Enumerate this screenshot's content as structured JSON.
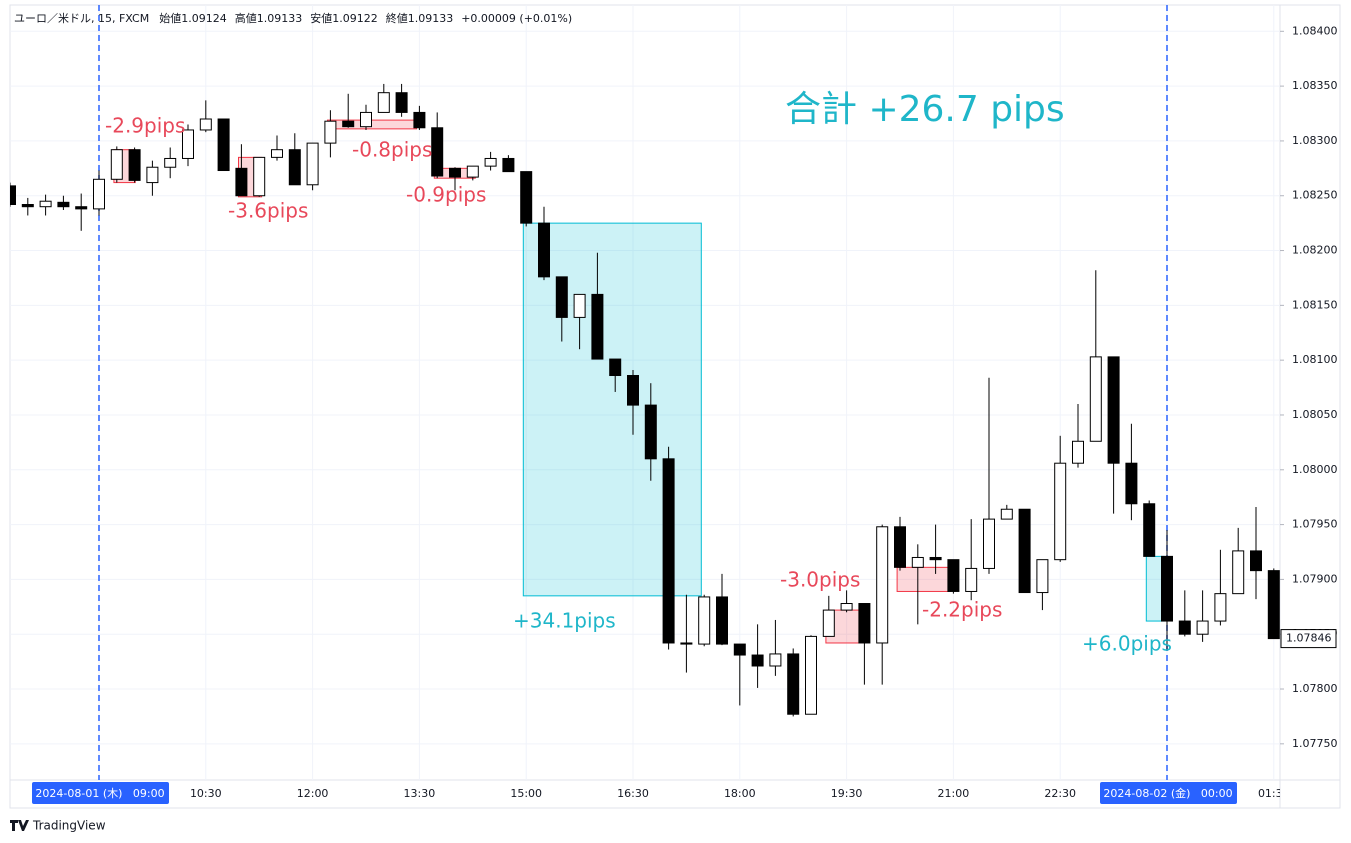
{
  "chart_data": {
    "type": "candlestick",
    "header": {
      "symbol": "ユーロ／米ドル, 15, FXCM",
      "ohlc": [
        "始値1.09124",
        "高値1.09133",
        "安値1.09122",
        "終値1.09133"
      ],
      "change": "+0.00009 (+0.01%)"
    },
    "annotation": "合計 +26.7 pips",
    "brand": "TradingView",
    "categories": [
      null,
      null,
      null,
      null,
      null,
      "2024-08-01 (木)   09:00",
      null,
      null,
      null,
      null,
      null,
      "10:30",
      null,
      null,
      null,
      null,
      null,
      "12:00",
      null,
      null,
      null,
      null,
      null,
      "13:30",
      null,
      null,
      null,
      null,
      null,
      "15:00",
      null,
      null,
      null,
      null,
      null,
      "16:30",
      null,
      null,
      null,
      null,
      null,
      "18:00",
      null,
      null,
      null,
      null,
      null,
      "19:30",
      null,
      null,
      null,
      null,
      null,
      "21:00",
      null,
      null,
      null,
      null,
      null,
      "22:30",
      null,
      null,
      null,
      null,
      null,
      "2024-08-02 (金)   00:00",
      null,
      null,
      null,
      null,
      null,
      "01:30"
    ],
    "open": [
      1.08259,
      1.08242,
      1.0824,
      1.08244,
      1.0824,
      1.08238,
      1.08265,
      1.08292,
      1.08262,
      1.08276,
      1.08284,
      1.0831,
      1.0832,
      1.08275,
      1.0825,
      1.08285,
      1.08292,
      1.0826,
      1.08298,
      1.08318,
      1.08313,
      1.08326,
      1.08344,
      1.08326,
      1.08312,
      1.08275,
      1.08267,
      1.08277,
      1.08284,
      1.08272,
      1.08225,
      1.08176,
      1.08139,
      1.0816,
      1.08101,
      1.08086,
      1.08059,
      1.0801,
      1.07842,
      1.07841,
      1.07884,
      1.07841,
      1.07831,
      1.07821,
      1.07832,
      1.07777,
      1.07848,
      1.07872,
      1.07878,
      1.07842,
      1.07948,
      1.07911,
      1.0792,
      1.07918,
      1.07889,
      1.0791,
      1.07955,
      1.07964,
      1.07888,
      1.07918,
      1.08006,
      1.08026,
      1.08103,
      1.08006,
      1.07969,
      1.07921,
      1.07862,
      1.0785,
      1.07862,
      1.07887,
      1.07926,
      1.07908
    ],
    "high": [
      1.08262,
      1.08248,
      1.08251,
      1.0825,
      1.08252,
      1.08273,
      1.08295,
      1.08294,
      1.08282,
      1.08294,
      1.08315,
      1.08337,
      1.0832,
      1.08297,
      1.08285,
      1.08305,
      1.08307,
      1.08298,
      1.08328,
      1.08343,
      1.08333,
      1.08352,
      1.08352,
      1.08332,
      1.08326,
      1.08276,
      1.08277,
      1.0829,
      1.08287,
      1.08272,
      1.0824,
      1.08176,
      1.0816,
      1.08198,
      1.08101,
      1.08091,
      1.08079,
      1.08021,
      1.07886,
      1.07886,
      1.07905,
      1.07841,
      1.07859,
      1.07863,
      1.07837,
      1.07849,
      1.07885,
      1.0789,
      1.07878,
      1.0795,
      1.07957,
      1.07932,
      1.0795,
      1.07918,
      1.07955,
      1.08084,
      1.07968,
      1.07964,
      1.07918,
      1.08031,
      1.0806,
      1.08182,
      1.08103,
      1.08042,
      1.07972,
      1.07945,
      1.0789,
      1.0789,
      1.07927,
      1.07947,
      1.07966,
      1.0791
    ],
    "low": [
      1.0824,
      1.08232,
      1.08232,
      1.08237,
      1.08218,
      1.08232,
      1.08262,
      1.08262,
      1.0825,
      1.08266,
      1.08277,
      1.08308,
      1.08273,
      1.0825,
      1.08249,
      1.08282,
      1.0826,
      1.08255,
      1.08285,
      1.08312,
      1.0831,
      1.08326,
      1.08322,
      1.0831,
      1.08266,
      1.08255,
      1.08264,
      1.08273,
      1.08272,
      1.08222,
      1.08173,
      1.08117,
      1.0811,
      1.08101,
      1.08071,
      1.08032,
      1.0799,
      1.07836,
      1.07815,
      1.07839,
      1.0784,
      1.07785,
      1.07801,
      1.07812,
      1.07775,
      1.07777,
      1.07848,
      1.0787,
      1.07804,
      1.07804,
      1.07908,
      1.07859,
      1.07905,
      1.07887,
      1.07881,
      1.07905,
      1.07955,
      1.07888,
      1.07872,
      1.07916,
      1.08002,
      1.08026,
      1.0796,
      1.07954,
      1.07921,
      1.07835,
      1.07848,
      1.07843,
      1.07858,
      1.07887,
      1.07882,
      1.07846
    ],
    "close": [
      1.08242,
      1.0824,
      1.08245,
      1.0824,
      1.08238,
      1.08265,
      1.08292,
      1.08264,
      1.08276,
      1.08284,
      1.0831,
      1.0832,
      1.08273,
      1.0825,
      1.08285,
      1.08292,
      1.0826,
      1.08298,
      1.08318,
      1.08313,
      1.08326,
      1.08344,
      1.08326,
      1.08312,
      1.08268,
      1.08267,
      1.08277,
      1.08284,
      1.08272,
      1.08225,
      1.08176,
      1.08139,
      1.0816,
      1.08101,
      1.08086,
      1.08059,
      1.0801,
      1.07842,
      1.07841,
      1.07884,
      1.07841,
      1.07831,
      1.07821,
      1.07832,
      1.07777,
      1.07848,
      1.07872,
      1.07878,
      1.07842,
      1.07948,
      1.07911,
      1.0792,
      1.07918,
      1.07889,
      1.0791,
      1.07955,
      1.07964,
      1.07888,
      1.07918,
      1.08006,
      1.08026,
      1.08103,
      1.08006,
      1.07969,
      1.07921,
      1.07862,
      1.0785,
      1.07862,
      1.07887,
      1.07926,
      1.07908,
      1.07846
    ],
    "up_color": "#ffffff",
    "down_color": "#000000",
    "trades": [
      {
        "start": 6,
        "end": 7.2,
        "entry": 1.08292,
        "exit": 1.08262,
        "label": "-2.9pips",
        "color": "#f23645"
      },
      {
        "start": 13,
        "end": 14.3,
        "entry": 1.08285,
        "exit": 1.08249,
        "label": "-3.6pips",
        "color": "#f23645"
      },
      {
        "start": 18,
        "end": 23,
        "entry": 1.08319,
        "exit": 1.08311,
        "label": "-0.8pips",
        "color": "#f23645"
      },
      {
        "start": 24,
        "end": 26.3,
        "entry": 1.08275,
        "exit": 1.08266,
        "label": "-0.9pips",
        "color": "#f23645"
      },
      {
        "start": 29,
        "end": 39,
        "entry": 1.08225,
        "exit": 1.07885,
        "label": "+34.1pips",
        "color": "#00bcd4"
      },
      {
        "start": 46,
        "end": 48.2,
        "entry": 1.07872,
        "exit": 1.07842,
        "label": "-3.0pips",
        "color": "#f23645"
      },
      {
        "start": 50,
        "end": 53,
        "entry": 1.07911,
        "exit": 1.07889,
        "label": "-2.2pips",
        "color": "#f23645"
      },
      {
        "start": 64,
        "end": 65,
        "entry": 1.07921,
        "exit": 1.07862,
        "label": "+6.0pips",
        "color": "#00bcd4"
      }
    ],
    "ylim": [
      1.07717,
      1.08424
    ],
    "yticks": [
      {
        "value": 1.084,
        "label": "1.08400"
      },
      {
        "value": 1.0835,
        "label": "1.08350"
      },
      {
        "value": 1.083,
        "label": "1.08300"
      },
      {
        "value": 1.0825,
        "label": "1.08250"
      },
      {
        "value": 1.082,
        "label": "1.08200"
      },
      {
        "value": 1.0815,
        "label": "1.08150"
      },
      {
        "value": 1.081,
        "label": "1.08100"
      },
      {
        "value": 1.0805,
        "label": "1.08050"
      },
      {
        "value": 1.08,
        "label": "1.08000"
      },
      {
        "value": 1.0795,
        "label": "1.07950"
      },
      {
        "value": 1.079,
        "label": "1.07900"
      },
      {
        "value": 1.0785,
        "label": "1.07850"
      },
      {
        "value": 1.078,
        "label": "1.07800"
      },
      {
        "value": 1.0775,
        "label": "1.07750"
      }
    ],
    "grid": true
  }
}
